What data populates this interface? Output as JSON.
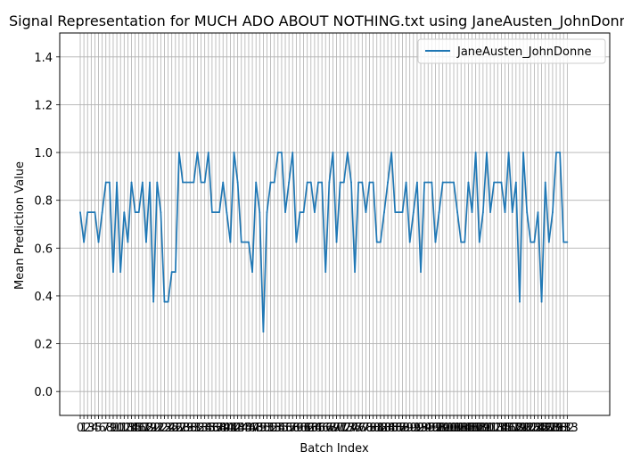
{
  "chart_data": {
    "type": "line",
    "title": "Signal Representation for MUCH ADO ABOUT NOTHING.txt using JaneAusten_JohnDonne",
    "xlabel": "Batch Index",
    "ylabel": "Mean Prediction Value",
    "xlim": [
      -5.6,
      144.6
    ],
    "ylim": [
      -0.1,
      1.5
    ],
    "yticks": [
      0.0,
      0.2,
      0.4,
      0.6,
      0.8,
      1.0,
      1.2,
      1.4
    ],
    "xtick_labels_visible": "0 2 3 4 5 6 7 8 9 10 11 12 ... 130 131 132 133 (every batch index is a tick; labels overlap)",
    "grid": true,
    "legend_position": "top-right",
    "series": [
      {
        "name": "JaneAusten_JohnDonne",
        "color": "#1f77b4",
        "x": [
          0,
          1,
          2,
          3,
          4,
          5,
          6,
          7,
          8,
          9,
          10,
          11,
          12,
          13,
          14,
          15,
          16,
          17,
          18,
          19,
          20,
          21,
          22,
          23,
          24,
          25,
          26,
          27,
          28,
          29,
          30,
          31,
          32,
          33,
          34,
          35,
          36,
          37,
          38,
          39,
          40,
          41,
          42,
          43,
          44,
          45,
          46,
          47,
          48,
          49,
          50,
          51,
          52,
          53,
          54,
          55,
          56,
          57,
          58,
          59,
          60,
          61,
          62,
          63,
          64,
          65,
          66,
          67,
          68,
          69,
          70,
          71,
          72,
          73,
          74,
          75,
          76,
          77,
          78,
          79,
          80,
          81,
          82,
          83,
          84,
          85,
          86,
          87,
          88,
          89,
          90,
          91,
          92,
          93,
          94,
          95,
          96,
          97,
          98,
          99,
          100,
          101,
          102,
          103,
          104,
          105,
          106,
          107,
          108,
          109,
          110,
          111,
          112,
          113,
          114,
          115,
          116,
          117,
          118,
          119,
          120,
          121,
          122,
          123,
          124,
          125,
          126,
          127,
          128,
          129,
          130,
          131,
          132,
          133
        ],
        "values": [
          0.75,
          0.625,
          0.75,
          0.75,
          0.75,
          0.625,
          0.75,
          0.875,
          0.875,
          0.5,
          0.875,
          0.5,
          0.75,
          0.625,
          0.875,
          0.75,
          0.75,
          0.875,
          0.625,
          0.875,
          0.375,
          0.875,
          0.75,
          0.375,
          0.375,
          0.5,
          0.5,
          1.0,
          0.875,
          0.875,
          0.875,
          0.875,
          1.0,
          0.875,
          0.875,
          1.0,
          0.75,
          0.75,
          0.75,
          0.875,
          0.75,
          0.625,
          1.0,
          0.875,
          0.625,
          0.625,
          0.625,
          0.5,
          0.875,
          0.75,
          0.25,
          0.75,
          0.875,
          0.875,
          1.0,
          1.0,
          0.75,
          0.875,
          1.0,
          0.625,
          0.75,
          0.75,
          0.875,
          0.875,
          0.75,
          0.875,
          0.875,
          0.5,
          0.875,
          1.0,
          0.625,
          0.875,
          0.875,
          1.0,
          0.875,
          0.5,
          0.875,
          0.875,
          0.75,
          0.875,
          0.875,
          0.625,
          0.625,
          0.75,
          0.875,
          1.0,
          0.75,
          0.75,
          0.75,
          0.875,
          0.625,
          0.75,
          0.875,
          0.5,
          0.875,
          0.875,
          0.875,
          0.625,
          0.75,
          0.875,
          0.875,
          0.875,
          0.875,
          0.75,
          0.625,
          0.625,
          0.875,
          0.75,
          1.0,
          0.625,
          0.75,
          1.0,
          0.75,
          0.875,
          0.875,
          0.875,
          0.75,
          1.0,
          0.75,
          0.875,
          0.375,
          1.0,
          0.75,
          0.625,
          0.625,
          0.75,
          0.375,
          0.875,
          0.625,
          0.75,
          1.0,
          1.0,
          0.625,
          0.625
        ]
      }
    ]
  }
}
